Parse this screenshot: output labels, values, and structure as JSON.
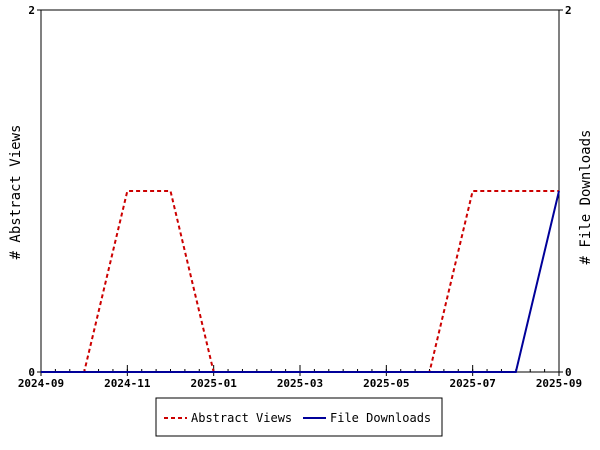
{
  "chart_data": {
    "type": "line",
    "x": [
      "2024-09",
      "2024-10",
      "2024-11",
      "2024-12",
      "2025-01",
      "2025-02",
      "2025-03",
      "2025-04",
      "2025-05",
      "2025-06",
      "2025-07",
      "2025-08",
      "2025-09"
    ],
    "x_tick_labels": [
      "2024-09",
      "2024-11",
      "2025-01",
      "2025-03",
      "2025-05",
      "2025-07",
      "2025-09"
    ],
    "series": [
      {
        "name": "Abstract Views",
        "axis": "left",
        "color": "#cc0000",
        "line_style": "dashed",
        "values": [
          0,
          0,
          1,
          1,
          0,
          0,
          0,
          0,
          0,
          0,
          1,
          1,
          1
        ]
      },
      {
        "name": "File Downloads",
        "axis": "right",
        "color": "#000099",
        "line_style": "solid",
        "values": [
          0,
          0,
          0,
          0,
          0,
          0,
          0,
          0,
          0,
          0,
          0,
          0,
          1
        ]
      }
    ],
    "ylabel_left": "# Abstract Views",
    "ylabel_right": "# File Downloads",
    "ylim_left": [
      0,
      2
    ],
    "ylim_right": [
      0,
      2
    ],
    "y_tick_labels_left": [
      "0",
      "2"
    ],
    "y_tick_labels_right": [
      "0",
      "2"
    ],
    "grid": false,
    "legend_position": "bottom"
  }
}
